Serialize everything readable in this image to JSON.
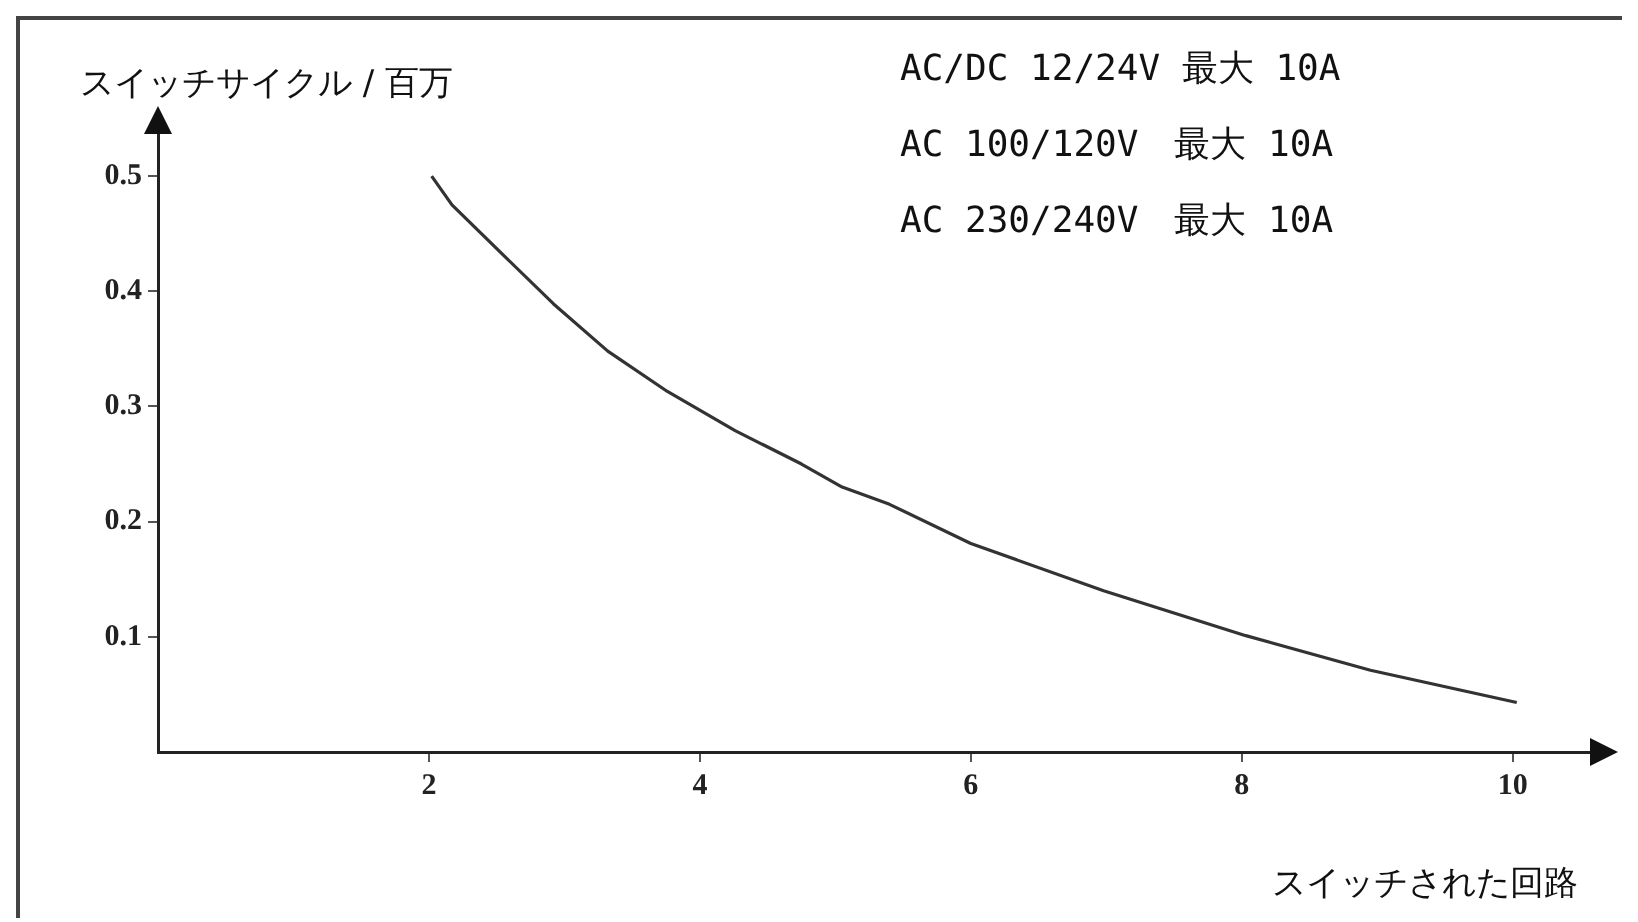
{
  "chart_data": {
    "type": "line",
    "xlabel": "スイッチされた回路",
    "ylabel": "スイッチサイクル / 百万",
    "annotations": [
      "AC/DC 12/24V 最大 10A",
      "AC 100/120V　最大 10A",
      "AC 230/240V　最大 10A"
    ],
    "x": [
      2.02,
      2.17,
      2.57,
      2.92,
      3.32,
      3.76,
      4.26,
      4.75,
      5.05,
      5.4,
      6.0,
      6.98,
      8.03,
      8.95,
      10.03
    ],
    "series": [
      {
        "color": "#333333",
        "values": [
          0.5,
          0.475,
          0.429,
          0.389,
          0.348,
          0.313,
          0.279,
          0.25,
          0.23,
          0.215,
          0.181,
          0.14,
          0.101,
          0.071,
          0.043
        ]
      }
    ],
    "xlim": [
      0,
      10.6
    ],
    "ylim": [
      0,
      0.54
    ],
    "xticks": [
      2,
      4,
      6,
      8,
      10
    ],
    "yticks": [
      0.1,
      0.2,
      0.3,
      0.4,
      0.5
    ],
    "grid": false,
    "legend": false,
    "marker": "none",
    "line_style": "solid"
  }
}
